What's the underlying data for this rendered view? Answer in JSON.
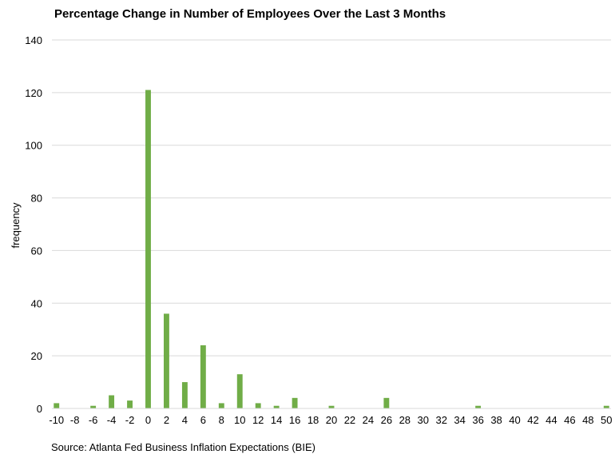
{
  "chart_data": {
    "type": "bar",
    "title": "Percentage Change in Number of Employees Over the Last 3 Months",
    "source": "Source: Atlanta Fed Business Inflation Expectations (BIE)",
    "xlabel": "",
    "ylabel": "frequency",
    "ylim": [
      0,
      140
    ],
    "yticks": [
      0,
      20,
      40,
      60,
      80,
      100,
      120,
      140
    ],
    "grid": true,
    "legend": "none",
    "bar_color": "#70ad47",
    "grid_color": "#d9d9d9",
    "categories": [
      "-10",
      "-9",
      "-8",
      "-7",
      "-6",
      "-5",
      "-4",
      "-3",
      "-2",
      "-1",
      "0",
      "1",
      "2",
      "3",
      "4",
      "5",
      "6",
      "7",
      "8",
      "9",
      "10",
      "11",
      "12",
      "13",
      "14",
      "15",
      "16",
      "17",
      "18",
      "19",
      "20",
      "21",
      "22",
      "23",
      "24",
      "25",
      "26",
      "27",
      "28",
      "29",
      "30",
      "31",
      "32",
      "33",
      "34",
      "35",
      "36",
      "37",
      "38",
      "39",
      "40",
      "41",
      "42",
      "43",
      "44",
      "45",
      "46",
      "47",
      "48",
      "49",
      "50"
    ],
    "tick_labels": [
      "-10",
      "-8",
      "-6",
      "-4",
      "-2",
      "0",
      "2",
      "4",
      "6",
      "8",
      "10",
      "12",
      "14",
      "16",
      "18",
      "20",
      "22",
      "24",
      "26",
      "28",
      "30",
      "32",
      "34",
      "36",
      "38",
      "40",
      "42",
      "44",
      "46",
      "48",
      "50"
    ],
    "values": [
      2,
      0,
      0,
      0,
      1,
      0,
      5,
      0,
      3,
      0,
      121,
      0,
      36,
      0,
      10,
      0,
      24,
      0,
      2,
      0,
      13,
      0,
      2,
      0,
      1,
      0,
      4,
      0,
      0,
      0,
      1,
      0,
      0,
      0,
      0,
      0,
      4,
      0,
      0,
      0,
      0,
      0,
      0,
      0,
      0,
      0,
      1,
      0,
      0,
      0,
      0,
      0,
      0,
      0,
      0,
      0,
      0,
      0,
      0,
      0,
      1
    ]
  }
}
